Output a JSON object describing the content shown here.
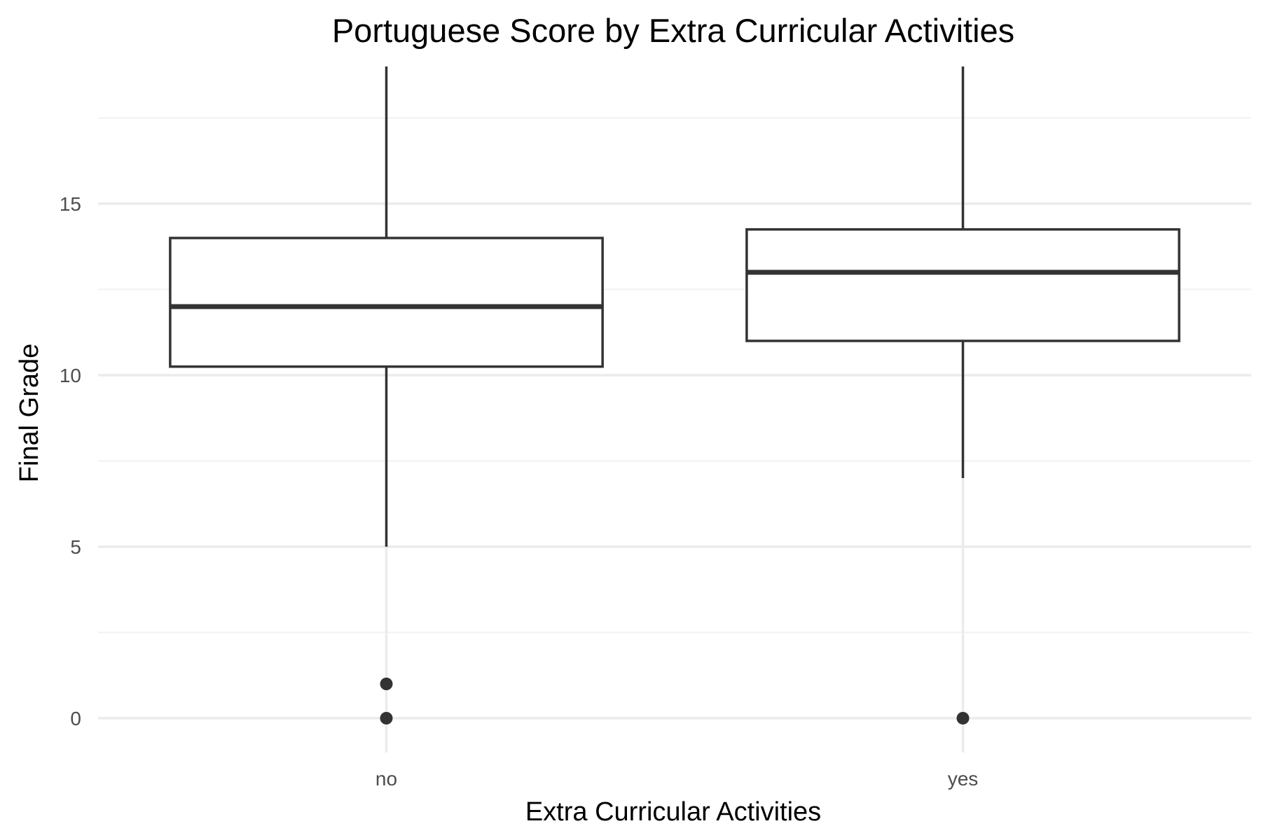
{
  "chart_data": {
    "type": "box",
    "title": "Portuguese Score by Extra Curricular Activities",
    "xlabel": "Extra Curricular Activities",
    "ylabel": "Final Grade",
    "categories": [
      "no",
      "yes"
    ],
    "ylim": [
      -1,
      19
    ],
    "yticks": [
      0,
      5,
      10,
      15
    ],
    "yticks_minor": [
      2.5,
      7.5,
      12.5,
      17.5
    ],
    "grid": true,
    "boxes": [
      {
        "category": "no",
        "whisker_low": 5,
        "q1": 10.25,
        "median": 12,
        "q3": 14,
        "whisker_high": 19,
        "outliers": [
          0,
          1
        ]
      },
      {
        "category": "yes",
        "whisker_low": 7,
        "q1": 11,
        "median": 13,
        "q3": 14.25,
        "whisker_high": 19,
        "outliers": [
          0
        ]
      }
    ],
    "colors": {
      "box_stroke": "#333333",
      "box_fill": "#ffffff",
      "grid_major": "#ebebeb",
      "grid_minor": "#f2f2f2",
      "tick_text": "#4d4d4d",
      "title_text": "#000000"
    }
  }
}
